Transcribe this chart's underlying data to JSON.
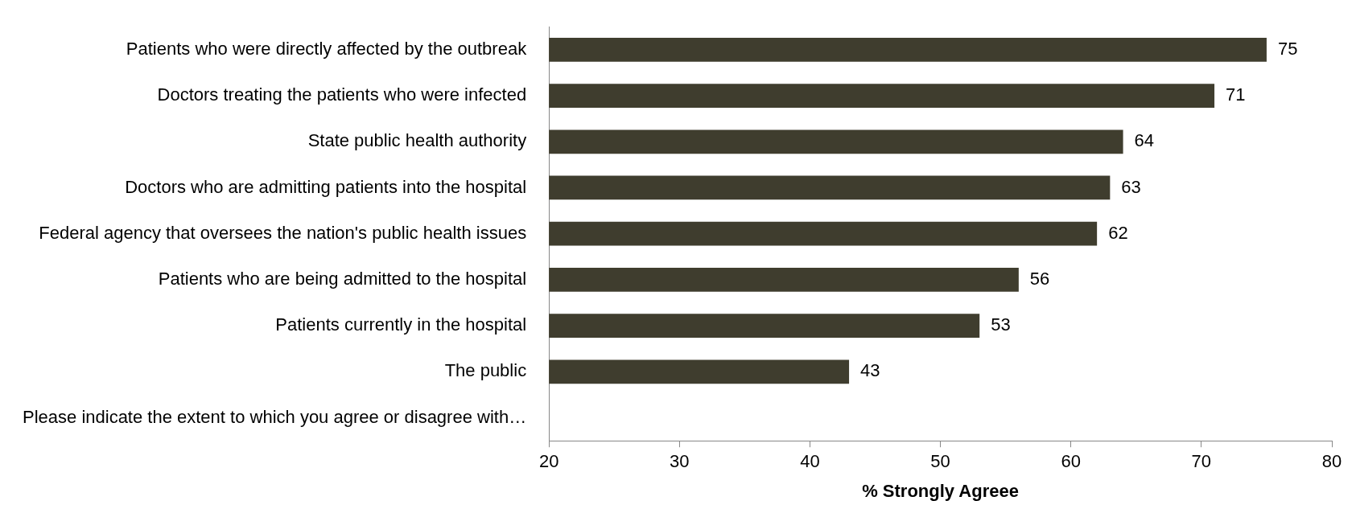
{
  "chart_data": {
    "type": "bar",
    "orientation": "horizontal",
    "xlabel": "% Strongly Agreee",
    "categories": [
      "Patients who were directly affected by the outbreak",
      "Doctors treating the patients who were infected",
      "State public health authority",
      "Doctors who are admitting patients into the hospital",
      "Federal agency that oversees the nation's public health issues",
      "Patients who are being admitted to the hospital",
      "Patients currently in the hospital",
      "The public",
      "Please indicate the extent to which you agree or disagree with…"
    ],
    "values": [
      75,
      71,
      64,
      63,
      62,
      56,
      53,
      43,
      null
    ],
    "color": "#3f3d2e",
    "xlim": [
      20,
      80
    ],
    "xticks": [
      20,
      30,
      40,
      50,
      60,
      70,
      80
    ],
    "data_labels": true
  }
}
